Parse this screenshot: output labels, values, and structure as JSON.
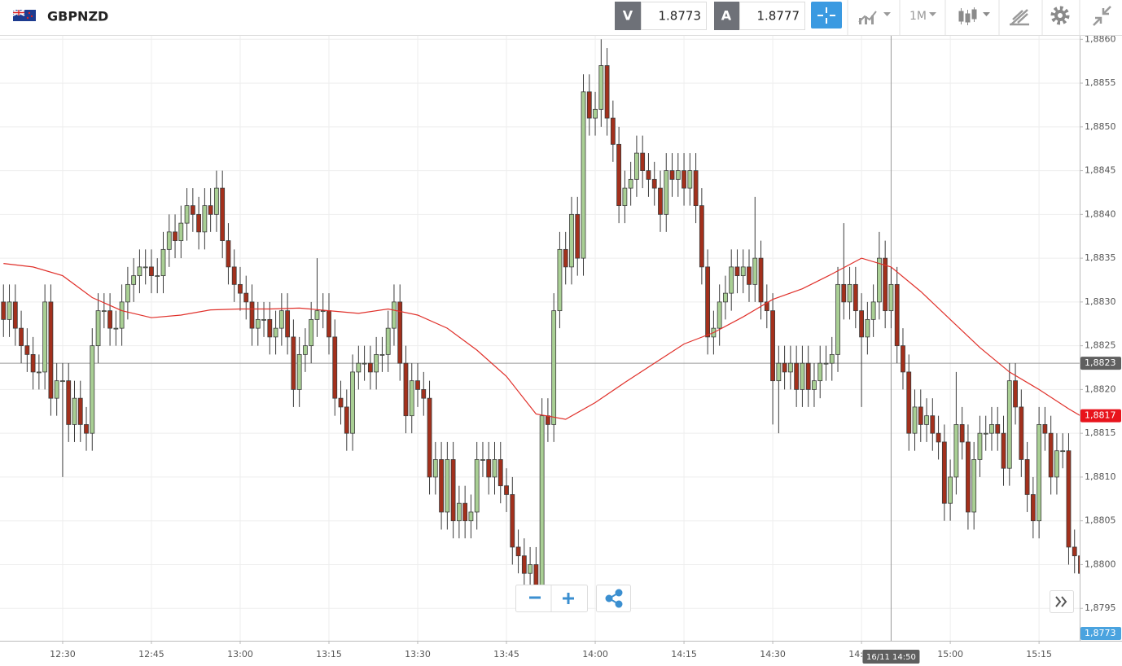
{
  "toolbar": {
    "symbol": "GBPNZD",
    "sell_tag": "V",
    "sell_price": "1.8773",
    "buy_tag": "A",
    "buy_price": "1.8777",
    "interval": "1M"
  },
  "chart_data": {
    "type": "candlestick",
    "x": [
      "12:20",
      "12:21",
      "12:22",
      "12:23",
      "12:24",
      "12:25",
      "12:26",
      "12:27",
      "12:28",
      "12:29",
      "12:30",
      "12:31",
      "12:32",
      "12:33",
      "12:34",
      "12:35",
      "12:36",
      "12:37",
      "12:38",
      "12:39",
      "12:40",
      "12:41",
      "12:42",
      "12:43",
      "12:44",
      "12:45",
      "12:46",
      "12:47",
      "12:48",
      "12:49",
      "12:50",
      "12:51",
      "12:52",
      "12:53",
      "12:54",
      "12:55",
      "12:56",
      "12:57",
      "12:58",
      "12:59",
      "13:00",
      "13:01",
      "13:02",
      "13:03",
      "13:04",
      "13:05",
      "13:06",
      "13:07",
      "13:08",
      "13:09",
      "13:10",
      "13:11",
      "13:12",
      "13:13",
      "13:14",
      "13:15",
      "13:16",
      "13:17",
      "13:18",
      "13:19",
      "13:20",
      "13:21",
      "13:22",
      "13:23",
      "13:24",
      "13:25",
      "13:26",
      "13:27",
      "13:28",
      "13:29",
      "13:30",
      "13:31",
      "13:32",
      "13:33",
      "13:34",
      "13:35",
      "13:36",
      "13:37",
      "13:38",
      "13:39",
      "13:40",
      "13:41",
      "13:42",
      "13:43",
      "13:44",
      "13:45",
      "13:46",
      "13:47",
      "13:48",
      "13:49",
      "13:50",
      "13:51",
      "13:52",
      "13:53",
      "13:54",
      "13:55",
      "13:56",
      "13:57",
      "13:58",
      "13:59",
      "14:00",
      "14:01",
      "14:02",
      "14:03",
      "14:04",
      "14:05",
      "14:06",
      "14:07",
      "14:08",
      "14:09",
      "14:10",
      "14:11",
      "14:12",
      "14:13",
      "14:14",
      "14:15",
      "14:16",
      "14:17",
      "14:18",
      "14:19",
      "14:20",
      "14:21",
      "14:22",
      "14:23",
      "14:24",
      "14:25",
      "14:26",
      "14:27",
      "14:28",
      "14:29",
      "14:30",
      "14:31",
      "14:32",
      "14:33",
      "14:34",
      "14:35",
      "14:36",
      "14:37",
      "14:38",
      "14:39",
      "14:40",
      "14:41",
      "14:42",
      "14:43",
      "14:44",
      "14:45",
      "14:46",
      "14:47",
      "14:48",
      "14:49",
      "14:50",
      "14:51",
      "14:52",
      "14:53",
      "14:54",
      "14:55",
      "14:56",
      "14:57",
      "14:58",
      "14:59",
      "15:00",
      "15:01",
      "15:02",
      "15:03",
      "15:04",
      "15:05",
      "15:06",
      "15:07",
      "15:08",
      "15:09",
      "15:10",
      "15:11",
      "15:12",
      "15:13",
      "15:14",
      "15:15",
      "15:16",
      "15:17",
      "15:18",
      "15:19",
      "15:20",
      "15:21",
      "15:22"
    ],
    "open": [
      1.883,
      1.8828,
      1.883,
      1.8827,
      1.8825,
      1.8824,
      1.8822,
      1.8822,
      1.883,
      1.8819,
      1.8821,
      1.8821,
      1.8816,
      1.8819,
      1.8816,
      1.8815,
      1.8825,
      1.8829,
      1.8829,
      1.8827,
      1.8827,
      1.883,
      1.8832,
      1.8833,
      1.8834,
      1.8834,
      1.8833,
      1.8833,
      1.8836,
      1.8838,
      1.8837,
      1.8839,
      1.8841,
      1.884,
      1.8838,
      1.8841,
      1.884,
      1.8843,
      1.8837,
      1.8834,
      1.8832,
      1.8831,
      1.883,
      1.8827,
      1.8828,
      1.8828,
      1.8826,
      1.8827,
      1.8829,
      1.8826,
      1.882,
      1.8824,
      1.8825,
      1.8828,
      1.8829,
      1.8829,
      1.8826,
      1.8819,
      1.8818,
      1.8815,
      1.8822,
      1.8823,
      1.8823,
      1.8822,
      1.8824,
      1.8824,
      1.8827,
      1.883,
      1.8823,
      1.8817,
      1.8821,
      1.882,
      1.8819,
      1.881,
      1.8812,
      1.8806,
      1.8812,
      1.8805,
      1.8807,
      1.8805,
      1.8806,
      1.8812,
      1.8812,
      1.881,
      1.8812,
      1.8809,
      1.8808,
      1.8802,
      1.8801,
      1.8799,
      1.88,
      1.8797,
      1.8817,
      1.8816,
      1.8829,
      1.8836,
      1.8834,
      1.884,
      1.8835,
      1.8854,
      1.8851,
      1.8852,
      1.8857,
      1.8851,
      1.8848,
      1.8841,
      1.8843,
      1.8844,
      1.8847,
      1.8845,
      1.8844,
      1.8843,
      1.884,
      1.8845,
      1.8844,
      1.8845,
      1.8843,
      1.8845,
      1.8841,
      1.8834,
      1.8826,
      1.8827,
      1.883,
      1.8831,
      1.8834,
      1.8833,
      1.8834,
      1.8832,
      1.8835,
      1.883,
      1.8829,
      1.8821,
      1.8823,
      1.8822,
      1.8823,
      1.882,
      1.8823,
      1.882,
      1.8821,
      1.8823,
      1.8823,
      1.8824,
      1.8832,
      1.883,
      1.8832,
      1.8829,
      1.8826,
      1.8828,
      1.883,
      1.8835,
      1.8829,
      1.8832,
      1.8825,
      1.8822,
      1.8815,
      1.8818,
      1.8816,
      1.8817,
      1.8815,
      1.8814,
      1.8807,
      1.881,
      1.8816,
      1.8814,
      1.8806,
      1.8812,
      1.8815,
      1.8815,
      1.8816,
      1.8815,
      1.8811,
      1.8821,
      1.8818,
      1.8812,
      1.8808,
      1.8805,
      1.8816,
      1.8815,
      1.881,
      1.8813,
      1.8813,
      1.8802,
      1.8801
    ],
    "high": [
      1.8832,
      1.8832,
      1.8832,
      1.8829,
      1.8827,
      1.8826,
      1.8824,
      1.8832,
      1.8832,
      1.8823,
      1.8823,
      1.8823,
      1.8821,
      1.8821,
      1.8818,
      1.8827,
      1.8831,
      1.8831,
      1.8831,
      1.8829,
      1.8832,
      1.8834,
      1.8835,
      1.8836,
      1.8836,
      1.8836,
      1.8835,
      1.8838,
      1.884,
      1.884,
      1.8841,
      1.8843,
      1.8843,
      1.8842,
      1.8843,
      1.8843,
      1.8845,
      1.8845,
      1.8839,
      1.8836,
      1.8834,
      1.8833,
      1.8832,
      1.883,
      1.883,
      1.883,
      1.8829,
      1.8831,
      1.8831,
      1.8828,
      1.8826,
      1.8827,
      1.883,
      1.8835,
      1.8831,
      1.8831,
      1.8828,
      1.8821,
      1.882,
      1.8824,
      1.8825,
      1.8825,
      1.8825,
      1.8826,
      1.8826,
      1.8829,
      1.8832,
      1.8832,
      1.8825,
      1.8823,
      1.8823,
      1.8822,
      1.8821,
      1.8814,
      1.8814,
      1.8814,
      1.8814,
      1.8809,
      1.8809,
      1.8808,
      1.8814,
      1.8814,
      1.8814,
      1.8814,
      1.8814,
      1.8811,
      1.881,
      1.8804,
      1.8803,
      1.8802,
      1.8802,
      1.8819,
      1.8819,
      1.8831,
      1.8838,
      1.8838,
      1.8842,
      1.8842,
      1.8856,
      1.8856,
      1.8854,
      1.886,
      1.8859,
      1.8853,
      1.885,
      1.8845,
      1.8846,
      1.8849,
      1.8849,
      1.8847,
      1.8846,
      1.8845,
      1.8847,
      1.8847,
      1.8847,
      1.8847,
      1.8847,
      1.8847,
      1.8843,
      1.8836,
      1.8829,
      1.8832,
      1.8833,
      1.8836,
      1.8836,
      1.8836,
      1.8836,
      1.8842,
      1.8837,
      1.8832,
      1.8831,
      1.8825,
      1.8825,
      1.8825,
      1.8825,
      1.8825,
      1.8825,
      1.8823,
      1.8825,
      1.8825,
      1.8826,
      1.8834,
      1.8839,
      1.8834,
      1.8834,
      1.8831,
      1.883,
      1.8832,
      1.8838,
      1.8837,
      1.8834,
      1.8834,
      1.8827,
      1.8824,
      1.882,
      1.882,
      1.8819,
      1.8819,
      1.8817,
      1.8816,
      1.8812,
      1.8822,
      1.8818,
      1.8816,
      1.8814,
      1.8817,
      1.8817,
      1.8818,
      1.8818,
      1.8817,
      1.8823,
      1.8823,
      1.882,
      1.8814,
      1.881,
      1.8818,
      1.8818,
      1.8817,
      1.8815,
      1.8815,
      1.8815,
      1.8804,
      1.8803
    ],
    "low": [
      1.8826,
      1.8826,
      1.8825,
      1.8823,
      1.8822,
      1.882,
      1.882,
      1.882,
      1.8817,
      1.8817,
      1.881,
      1.8814,
      1.8814,
      1.8814,
      1.8813,
      1.8813,
      1.8823,
      1.8827,
      1.8825,
      1.8825,
      1.8825,
      1.8828,
      1.883,
      1.8831,
      1.8832,
      1.8831,
      1.8831,
      1.8831,
      1.8834,
      1.8835,
      1.8835,
      1.8837,
      1.8838,
      1.8836,
      1.8836,
      1.8838,
      1.8838,
      1.8835,
      1.8832,
      1.883,
      1.8829,
      1.8828,
      1.8825,
      1.8825,
      1.8826,
      1.8824,
      1.8824,
      1.8825,
      1.8824,
      1.8818,
      1.8818,
      1.8822,
      1.8823,
      1.8826,
      1.8827,
      1.8824,
      1.8817,
      1.8816,
      1.8813,
      1.8813,
      1.882,
      1.8821,
      1.882,
      1.882,
      1.8822,
      1.8822,
      1.8825,
      1.8821,
      1.8815,
      1.8815,
      1.8818,
      1.8817,
      1.8808,
      1.8808,
      1.8804,
      1.8804,
      1.8803,
      1.8803,
      1.8803,
      1.8803,
      1.8804,
      1.881,
      1.8808,
      1.8808,
      1.8807,
      1.8806,
      1.88,
      1.8799,
      1.8797,
      1.8797,
      1.8795,
      1.8795,
      1.8814,
      1.8814,
      1.8827,
      1.8832,
      1.8832,
      1.8833,
      1.8833,
      1.8849,
      1.8849,
      1.885,
      1.8849,
      1.8846,
      1.8839,
      1.8839,
      1.8841,
      1.8842,
      1.8843,
      1.8842,
      1.8841,
      1.8838,
      1.8838,
      1.8842,
      1.8842,
      1.8841,
      1.8841,
      1.8839,
      1.8832,
      1.8824,
      1.8824,
      1.8825,
      1.8828,
      1.8829,
      1.8831,
      1.8831,
      1.883,
      1.883,
      1.8828,
      1.8827,
      1.8816,
      1.8815,
      1.882,
      1.882,
      1.8818,
      1.8818,
      1.8818,
      1.8818,
      1.8819,
      1.8821,
      1.8821,
      1.8822,
      1.8828,
      1.8828,
      1.8827,
      1.8818,
      1.8824,
      1.8826,
      1.8828,
      1.8827,
      1.8827,
      1.8823,
      1.882,
      1.8813,
      1.8813,
      1.8814,
      1.8814,
      1.8813,
      1.8812,
      1.8805,
      1.8805,
      1.8808,
      1.8812,
      1.8804,
      1.8804,
      1.881,
      1.8813,
      1.8813,
      1.8813,
      1.8809,
      1.8809,
      1.8816,
      1.881,
      1.8806,
      1.8803,
      1.8803,
      1.8813,
      1.8808,
      1.8808,
      1.8811,
      1.88,
      1.8799,
      1.8797
    ],
    "close": [
      1.8828,
      1.883,
      1.8827,
      1.8825,
      1.8824,
      1.8822,
      1.8822,
      1.883,
      1.8819,
      1.8821,
      1.8821,
      1.8816,
      1.8819,
      1.8816,
      1.8815,
      1.8825,
      1.8829,
      1.8829,
      1.8827,
      1.8827,
      1.883,
      1.8832,
      1.8833,
      1.8834,
      1.8834,
      1.8833,
      1.8833,
      1.8836,
      1.8838,
      1.8837,
      1.8839,
      1.8841,
      1.884,
      1.8838,
      1.8841,
      1.884,
      1.8843,
      1.8837,
      1.8834,
      1.8832,
      1.8831,
      1.883,
      1.8827,
      1.8828,
      1.8828,
      1.8826,
      1.8827,
      1.8829,
      1.8826,
      1.882,
      1.8824,
      1.8825,
      1.8828,
      1.8829,
      1.8829,
      1.8826,
      1.8819,
      1.8818,
      1.8815,
      1.8822,
      1.8823,
      1.8823,
      1.8822,
      1.8824,
      1.8824,
      1.8827,
      1.883,
      1.8823,
      1.8817,
      1.8821,
      1.882,
      1.8819,
      1.881,
      1.8812,
      1.8806,
      1.8812,
      1.8805,
      1.8807,
      1.8805,
      1.8806,
      1.8812,
      1.8812,
      1.881,
      1.8812,
      1.8809,
      1.8808,
      1.8802,
      1.8801,
      1.8799,
      1.88,
      1.8797,
      1.8817,
      1.8816,
      1.8829,
      1.8836,
      1.8834,
      1.884,
      1.8835,
      1.8854,
      1.8851,
      1.8852,
      1.8857,
      1.8851,
      1.8848,
      1.8841,
      1.8843,
      1.8844,
      1.8847,
      1.8845,
      1.8844,
      1.8843,
      1.884,
      1.8845,
      1.8844,
      1.8845,
      1.8843,
      1.8845,
      1.8841,
      1.8834,
      1.8826,
      1.8827,
      1.883,
      1.8831,
      1.8834,
      1.8833,
      1.8834,
      1.8832,
      1.8835,
      1.883,
      1.8829,
      1.8821,
      1.8823,
      1.8822,
      1.8823,
      1.882,
      1.8823,
      1.882,
      1.8821,
      1.8823,
      1.8823,
      1.8824,
      1.8832,
      1.883,
      1.8832,
      1.8829,
      1.8826,
      1.8828,
      1.883,
      1.8835,
      1.8829,
      1.8832,
      1.8825,
      1.8822,
      1.8815,
      1.8818,
      1.8816,
      1.8817,
      1.8815,
      1.8814,
      1.8807,
      1.881,
      1.8816,
      1.8814,
      1.8806,
      1.8812,
      1.8815,
      1.8815,
      1.8816,
      1.8815,
      1.8811,
      1.8821,
      1.8818,
      1.8812,
      1.8808,
      1.8805,
      1.8816,
      1.8815,
      1.881,
      1.8813,
      1.8813,
      1.8802,
      1.8801,
      1.8799
    ],
    "up_color": "#a9cf94",
    "down_color": "#a3301c",
    "outline_color": "#3b3b3b",
    "overlays": [
      {
        "type": "line",
        "color": "#e0302a",
        "x": [
          "12:20",
          "12:25",
          "12:30",
          "12:35",
          "12:40",
          "12:45",
          "12:50",
          "12:55",
          "13:00",
          "13:05",
          "13:10",
          "13:15",
          "13:20",
          "13:25",
          "13:30",
          "13:35",
          "13:40",
          "13:45",
          "13:50",
          "13:55",
          "14:00",
          "14:05",
          "14:10",
          "14:15",
          "14:20",
          "14:25",
          "14:30",
          "14:35",
          "14:40",
          "14:45",
          "14:50",
          "14:55",
          "15:00",
          "15:05",
          "15:10",
          "15:15",
          "15:20",
          "15:22"
        ],
        "values": [
          1.88344,
          1.8834,
          1.8833,
          1.88305,
          1.8829,
          1.88282,
          1.88285,
          1.88291,
          1.88292,
          1.88292,
          1.88293,
          1.8829,
          1.88287,
          1.88292,
          1.88285,
          1.8827,
          1.88245,
          1.88215,
          1.88172,
          1.88166,
          1.88185,
          1.88208,
          1.8823,
          1.88252,
          1.88265,
          1.88283,
          1.88303,
          1.88315,
          1.88332,
          1.8835,
          1.8834,
          1.88312,
          1.8828,
          1.88248,
          1.8822,
          1.882,
          1.88178,
          1.8817
        ]
      }
    ],
    "xlim": [
      "12:19",
      "15:22"
    ],
    "xticks": [
      "12:30",
      "12:45",
      "13:00",
      "13:15",
      "13:30",
      "13:45",
      "14:00",
      "14:15",
      "14:30",
      "14:45",
      "15:00",
      "15:15"
    ],
    "ylim": [
      1.87913,
      1.88604
    ],
    "yticks": [
      {
        "value": 1.8795,
        "label": "1,8795"
      },
      {
        "value": 1.88,
        "label": "1,8800"
      },
      {
        "value": 1.8805,
        "label": "1,8805"
      },
      {
        "value": 1.881,
        "label": "1,8810"
      },
      {
        "value": 1.8815,
        "label": "1,8815"
      },
      {
        "value": 1.882,
        "label": "1,8820"
      },
      {
        "value": 1.8825,
        "label": "1,8825"
      },
      {
        "value": 1.883,
        "label": "1,8830"
      },
      {
        "value": 1.8835,
        "label": "1,8835"
      },
      {
        "value": 1.884,
        "label": "1,8840"
      },
      {
        "value": 1.8845,
        "label": "1,8845"
      },
      {
        "value": 1.885,
        "label": "1,8850"
      },
      {
        "value": 1.8855,
        "label": "1,8855"
      },
      {
        "value": 1.886,
        "label": "1,8860"
      }
    ],
    "grid": true,
    "crosshair": {
      "x": "14:50",
      "x_label": "16/11 14:50",
      "y": 1.8823,
      "y_label": "1,8823"
    },
    "price_marker": {
      "value": 1.8817,
      "label": "1,8817",
      "color": "#e8141c"
    },
    "bid_label": "1,8773"
  }
}
